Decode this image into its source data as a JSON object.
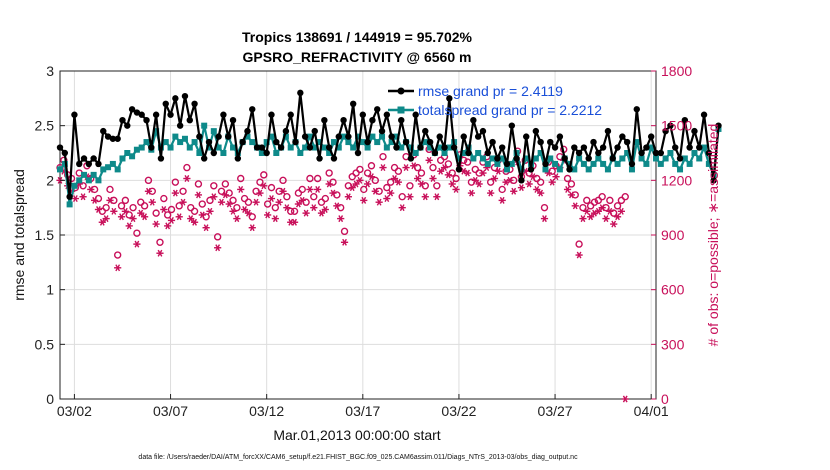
{
  "chart_data": {
    "type": "line",
    "title_line1": "Tropics 138691 / 144919 = 95.702%",
    "title_line2": "GPSRO_REFRACTIVITY @ 6560 m",
    "xlabel": "Mar.01,2013 00:00:00 start",
    "ylabel_left": "rmse and totalspread",
    "ylabel_right": "# of obs: o=possible; ∗=assimilated",
    "footer": "data file: /Users/raeder/DAI/ATM_forcXX/CAM6_setup/f.e21.FHIST_BGC.f09_025.CAM6assim.011/Diags_NTrS_2013-03/obs_diag_output.nc",
    "x_ticks": [
      "03/02",
      "03/07",
      "03/12",
      "03/17",
      "03/22",
      "03/27",
      "04/01"
    ],
    "x_tick_days": [
      1,
      6,
      11,
      16,
      21,
      26,
      31
    ],
    "xlim": [
      0.25,
      31.25
    ],
    "ylim_left": [
      0,
      3
    ],
    "yticks_left": [
      "0",
      "0.5",
      "1",
      "1.5",
      "2",
      "2.5",
      "3"
    ],
    "ylim_right": [
      0,
      1800
    ],
    "yticks_right": [
      "0",
      "300",
      "600",
      "900",
      "1200",
      "1500",
      "1800"
    ],
    "legend": {
      "rmse": "rmse grand pr = 2.4119",
      "spread": "totalspread grand pr = 2.2212"
    },
    "colors": {
      "rmse": "#000000",
      "spread": "#0e8a8a",
      "obs": "#c8105a",
      "grid": "#dddddd"
    },
    "series": [
      {
        "name": "rmse",
        "values": [
          2.3,
          2.25,
          1.85,
          2.6,
          2.15,
          2.2,
          2.15,
          2.2,
          2.15,
          2.45,
          2.4,
          2.38,
          2.38,
          2.55,
          2.5,
          2.65,
          2.62,
          2.6,
          2.55,
          2.3,
          2.6,
          2.2,
          2.7,
          2.6,
          2.75,
          2.5,
          2.77,
          2.55,
          2.7,
          2.4,
          2.2,
          2.35,
          2.25,
          2.4,
          2.6,
          2.4,
          2.55,
          2.2,
          2.35,
          2.45,
          2.65,
          2.3,
          2.3,
          2.25,
          2.6,
          2.35,
          2.3,
          2.45,
          2.6,
          2.35,
          2.8,
          2.4,
          2.3,
          2.45,
          2.2,
          2.55,
          2.3,
          2.2,
          2.4,
          2.55,
          2.4,
          2.7,
          2.25,
          2.6,
          2.35,
          2.55,
          2.65,
          2.45,
          2.6,
          2.4,
          2.3,
          2.55,
          2.35,
          2.2,
          2.6,
          2.3,
          2.45,
          2.35,
          2.25,
          2.4,
          2.3,
          2.75,
          2.3,
          2.1,
          2.4,
          2.25,
          2.55,
          2.4,
          2.45,
          2.25,
          2.35,
          2.2,
          2.3,
          2.15,
          2.5,
          2.2,
          2.0,
          2.4,
          2.1,
          2.45,
          2.35,
          2.15,
          2.35,
          2.3,
          2.4,
          2.2,
          2.1,
          2.3,
          2.25,
          2.3,
          2.2,
          2.35,
          2.25,
          2.3,
          2.45,
          2.2,
          2.3,
          2.4,
          2.35,
          2.15,
          2.65,
          2.25,
          2.3,
          2.4,
          2.25,
          2.25,
          2.45,
          2.5,
          2.3,
          2.2,
          2.55,
          2.3,
          2.45,
          2.3,
          2.6,
          2.25,
          2.0,
          2.5
        ],
        "x_start": 0.25,
        "x_step": 0.25
      },
      {
        "name": "spread",
        "values": [
          2.1,
          2.15,
          1.78,
          1.95,
          2.0,
          2.05,
          2.0,
          2.05,
          2.0,
          2.1,
          2.12,
          2.15,
          2.1,
          2.2,
          2.25,
          2.22,
          2.28,
          2.3,
          2.35,
          2.28,
          2.45,
          2.3,
          2.35,
          2.3,
          2.4,
          2.35,
          2.38,
          2.3,
          2.35,
          2.25,
          2.5,
          2.3,
          2.45,
          2.3,
          2.25,
          2.4,
          2.3,
          2.25,
          2.35,
          2.4,
          2.35,
          2.3,
          2.25,
          2.35,
          2.4,
          2.25,
          2.3,
          2.4,
          2.3,
          2.35,
          2.25,
          2.3,
          2.4,
          2.3,
          2.35,
          2.3,
          2.25,
          2.35,
          2.3,
          2.4,
          2.35,
          2.3,
          2.4,
          2.35,
          2.3,
          2.4,
          2.35,
          2.4,
          2.3,
          2.35,
          2.4,
          2.3,
          2.35,
          2.3,
          2.25,
          2.3,
          2.35,
          2.3,
          2.25,
          2.3,
          2.25,
          2.3,
          2.35,
          2.2,
          2.25,
          2.3,
          2.2,
          2.25,
          2.2,
          2.15,
          2.2,
          2.15,
          2.2,
          2.1,
          2.15,
          2.25,
          2.1,
          2.2,
          2.15,
          2.2,
          2.25,
          2.1,
          2.2,
          2.15,
          2.1,
          2.2,
          2.15,
          2.1,
          2.2,
          2.15,
          2.1,
          2.15,
          2.2,
          2.15,
          2.1,
          2.2,
          2.15,
          2.2,
          2.25,
          2.1,
          2.35,
          2.2,
          2.15,
          2.3,
          2.2,
          2.15,
          2.2,
          2.25,
          2.15,
          2.1,
          2.2,
          2.15,
          2.25,
          2.2,
          2.3,
          2.15,
          2.05,
          2.47
        ],
        "x_start": 0.25,
        "x_step": 0.25
      },
      {
        "name": "obs_possible",
        "values": [
          1270,
          1310,
          1230,
          1210,
          1160,
          1240,
          1170,
          1280,
          1210,
          1150,
          1100,
          1030,
          1050,
          1150,
          1090,
          790,
          1060,
          1090,
          1010,
          1050,
          910,
          1080,
          1060,
          1200,
          1140,
          1020,
          860,
          1100,
          1010,
          1040,
          1190,
          1060,
          1140,
          1270,
          1050,
          1030,
          1180,
          1070,
          1000,
          1090,
          1170,
          890,
          1140,
          1180,
          1130,
          1090,
          1050,
          1210,
          1100,
          1080,
          1000,
          1140,
          1190,
          1230,
          1070,
          1160,
          1050,
          1140,
          1200,
          1110,
          1030,
          1030,
          1130,
          1150,
          1080,
          1210,
          1110,
          1210,
          1080,
          1100,
          1240,
          1190,
          1120,
          1050,
          920,
          1170,
          1220,
          1240,
          1260,
          1150,
          1240,
          1280,
          1200,
          1140,
          1330,
          1160,
          1190,
          1270,
          1250,
          1110,
          1330,
          1170,
          1340,
          1270,
          1240,
          1170,
          1370,
          1270,
          1170,
          1310,
          1330,
          1290,
          1240,
          1210,
          1340,
          1310,
          1300,
          1190,
          1260,
          1240,
          1300,
          1330,
          1190,
          1270,
          1310,
          1150,
          1250,
          1260,
          1200,
          1360,
          1220,
          1310,
          1240,
          1280,
          1210,
          1190,
          1050,
          1300,
          1250,
          1280,
          1330,
          1370,
          1210,
          1180,
          1120,
          850,
          1050,
          1090,
          1060,
          1080,
          1090,
          1110,
          1050,
          1090,
          1020,
          1060,
          1090,
          1110
        ],
        "x_start": 0.25,
        "x_step": 0.2
      },
      {
        "name": "obs_assimilated",
        "values": [
          1200,
          1250,
          1170,
          1140,
          1100,
          1180,
          1110,
          1220,
          1150,
          1090,
          1040,
          970,
          990,
          1090,
          1030,
          720,
          1000,
          1030,
          950,
          990,
          850,
          1020,
          1000,
          1140,
          1080,
          960,
          800,
          1040,
          950,
          980,
          1130,
          1000,
          1080,
          1210,
          990,
          970,
          1120,
          1010,
          940,
          1030,
          1110,
          830,
          1080,
          1120,
          1070,
          1030,
          990,
          1150,
          1040,
          1020,
          940,
          1080,
          1130,
          1170,
          1010,
          1100,
          990,
          1080,
          1140,
          1050,
          970,
          970,
          1070,
          1090,
          1020,
          1150,
          1050,
          1150,
          1020,
          1040,
          1180,
          1130,
          1060,
          990,
          860,
          1110,
          1160,
          1180,
          1200,
          1090,
          1180,
          1220,
          1140,
          1080,
          1270,
          1100,
          1130,
          1210,
          1190,
          1050,
          1270,
          1110,
          1280,
          1210,
          1180,
          1110,
          1310,
          1210,
          1110,
          1250,
          1270,
          1230,
          1180,
          1150,
          1280,
          1250,
          1240,
          1130,
          1200,
          1180,
          1240,
          1270,
          1130,
          1210,
          1250,
          1090,
          1190,
          1200,
          1140,
          1300,
          1160,
          1250,
          1180,
          1220,
          1150,
          1130,
          990,
          1240,
          1190,
          1220,
          1270,
          1310,
          1150,
          1120,
          1060,
          790,
          990,
          1030,
          1000,
          1020,
          1030,
          1050,
          990,
          1030,
          960,
          1000,
          1030,
          0
        ],
        "x_start": 0.25,
        "x_step": 0.2
      }
    ]
  }
}
